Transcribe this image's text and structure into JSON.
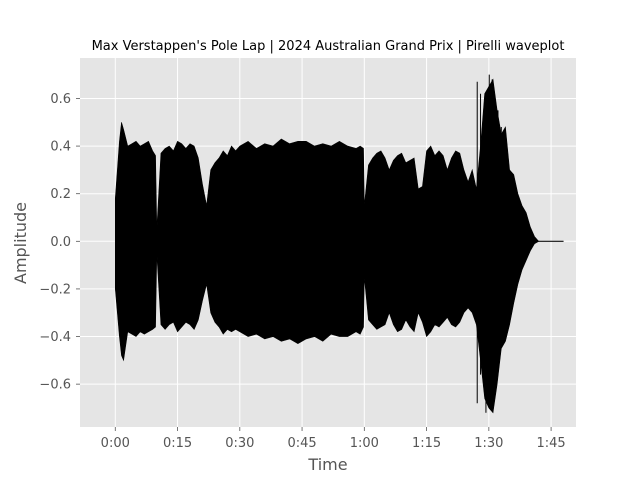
{
  "chart_data": {
    "type": "area",
    "title": "Max Verstappen's Pole Lap | 2024 Australian Grand Prix | Pirelli waveplot",
    "xlabel": "Time",
    "ylabel": "Amplitude",
    "x_unit": "seconds",
    "xlim": [
      -8.5,
      111
    ],
    "ylim": [
      -0.78,
      0.77
    ],
    "x_ticks": [
      {
        "value": 0,
        "label": "0:00"
      },
      {
        "value": 15,
        "label": "0:15"
      },
      {
        "value": 30,
        "label": "0:30"
      },
      {
        "value": 45,
        "label": "0:45"
      },
      {
        "value": 60,
        "label": "1:00"
      },
      {
        "value": 75,
        "label": "1:15"
      },
      {
        "value": 90,
        "label": "1:30"
      },
      {
        "value": 105,
        "label": "1:45"
      }
    ],
    "y_ticks": [
      {
        "value": -0.6,
        "label": "−0.6"
      },
      {
        "value": -0.4,
        "label": "−0.4"
      },
      {
        "value": -0.2,
        "label": "−0.2"
      },
      {
        "value": 0.0,
        "label": "0.0"
      },
      {
        "value": 0.2,
        "label": "0.2"
      },
      {
        "value": 0.4,
        "label": "0.4"
      },
      {
        "value": 0.6,
        "label": "0.6"
      }
    ],
    "grid": true,
    "background_color": "#e5e5e5",
    "grid_color": "#ffffff",
    "wave_color": "#000000",
    "envelope": {
      "x": [
        0,
        0.5,
        1,
        1.5,
        2,
        3,
        4,
        5,
        6,
        7,
        8,
        9,
        9.7,
        10,
        11,
        12,
        13,
        14,
        15,
        16,
        17,
        18,
        19,
        20,
        21,
        22,
        23,
        24,
        25,
        26,
        27,
        28,
        29,
        30,
        32,
        34,
        36,
        38,
        40,
        42,
        44,
        46,
        48,
        50,
        52,
        54,
        56,
        58,
        59,
        59.8,
        60,
        61,
        62,
        63,
        64,
        65,
        66,
        67,
        68,
        69,
        70,
        71,
        72,
        73,
        74,
        75,
        76,
        77,
        78,
        79,
        80,
        81,
        82,
        83,
        84,
        85,
        86,
        87,
        88,
        89,
        90,
        91,
        92,
        93,
        94,
        95,
        96,
        97,
        98,
        99,
        100,
        101,
        102,
        103,
        104,
        105,
        106,
        107,
        108
      ],
      "upper": [
        0.18,
        0.3,
        0.42,
        0.5,
        0.47,
        0.4,
        0.41,
        0.42,
        0.4,
        0.41,
        0.42,
        0.38,
        0.36,
        0.05,
        0.37,
        0.39,
        0.4,
        0.38,
        0.42,
        0.41,
        0.39,
        0.41,
        0.4,
        0.35,
        0.24,
        0.15,
        0.3,
        0.33,
        0.35,
        0.38,
        0.36,
        0.4,
        0.38,
        0.4,
        0.42,
        0.39,
        0.41,
        0.4,
        0.43,
        0.41,
        0.42,
        0.42,
        0.4,
        0.41,
        0.4,
        0.42,
        0.4,
        0.39,
        0.4,
        0.39,
        0.15,
        0.32,
        0.35,
        0.37,
        0.38,
        0.35,
        0.3,
        0.34,
        0.36,
        0.37,
        0.33,
        0.34,
        0.35,
        0.22,
        0.23,
        0.38,
        0.4,
        0.36,
        0.38,
        0.36,
        0.3,
        0.35,
        0.38,
        0.37,
        0.3,
        0.25,
        0.3,
        0.22,
        0.4,
        0.62,
        0.65,
        0.68,
        0.55,
        0.45,
        0.48,
        0.3,
        0.28,
        0.2,
        0.15,
        0.12,
        0.06,
        0.02,
        0,
        0,
        0,
        0,
        0,
        0,
        0
      ],
      "lower": [
        -0.2,
        -0.3,
        -0.4,
        -0.48,
        -0.5,
        -0.38,
        -0.39,
        -0.4,
        -0.38,
        -0.39,
        -0.38,
        -0.37,
        -0.36,
        -0.05,
        -0.35,
        -0.37,
        -0.35,
        -0.34,
        -0.38,
        -0.36,
        -0.34,
        -0.35,
        -0.37,
        -0.33,
        -0.25,
        -0.18,
        -0.3,
        -0.34,
        -0.36,
        -0.39,
        -0.37,
        -0.38,
        -0.37,
        -0.38,
        -0.4,
        -0.39,
        -0.41,
        -0.4,
        -0.42,
        -0.41,
        -0.43,
        -0.41,
        -0.4,
        -0.42,
        -0.39,
        -0.4,
        -0.4,
        -0.38,
        -0.39,
        -0.36,
        -0.15,
        -0.33,
        -0.35,
        -0.37,
        -0.36,
        -0.35,
        -0.3,
        -0.35,
        -0.38,
        -0.37,
        -0.33,
        -0.36,
        -0.38,
        -0.3,
        -0.34,
        -0.4,
        -0.38,
        -0.35,
        -0.36,
        -0.34,
        -0.32,
        -0.35,
        -0.36,
        -0.34,
        -0.3,
        -0.28,
        -0.3,
        -0.35,
        -0.5,
        -0.66,
        -0.7,
        -0.72,
        -0.6,
        -0.45,
        -0.42,
        -0.35,
        -0.26,
        -0.18,
        -0.12,
        -0.08,
        -0.04,
        -0.01,
        0,
        0,
        0,
        0,
        0,
        0,
        0
      ]
    },
    "spikes": [
      {
        "x": 87.2,
        "upper": 0.67,
        "lower": -0.68
      },
      {
        "x": 88.0,
        "upper": 0.62,
        "lower": -0.56
      },
      {
        "x": 89.3,
        "upper": 0.6,
        "lower": -0.72
      },
      {
        "x": 90.1,
        "upper": 0.7,
        "lower": -0.55
      },
      {
        "x": 90.8,
        "upper": 0.68,
        "lower": -0.6
      },
      {
        "x": 91.5,
        "upper": 0.45,
        "lower": -0.52
      },
      {
        "x": 92.2,
        "upper": 0.55,
        "lower": -0.45
      },
      {
        "x": 93.0,
        "upper": 0.48,
        "lower": -0.4
      },
      {
        "x": 94.0,
        "upper": 0.4,
        "lower": -0.38
      },
      {
        "x": 95.0,
        "upper": 0.3,
        "lower": -0.28
      }
    ]
  }
}
